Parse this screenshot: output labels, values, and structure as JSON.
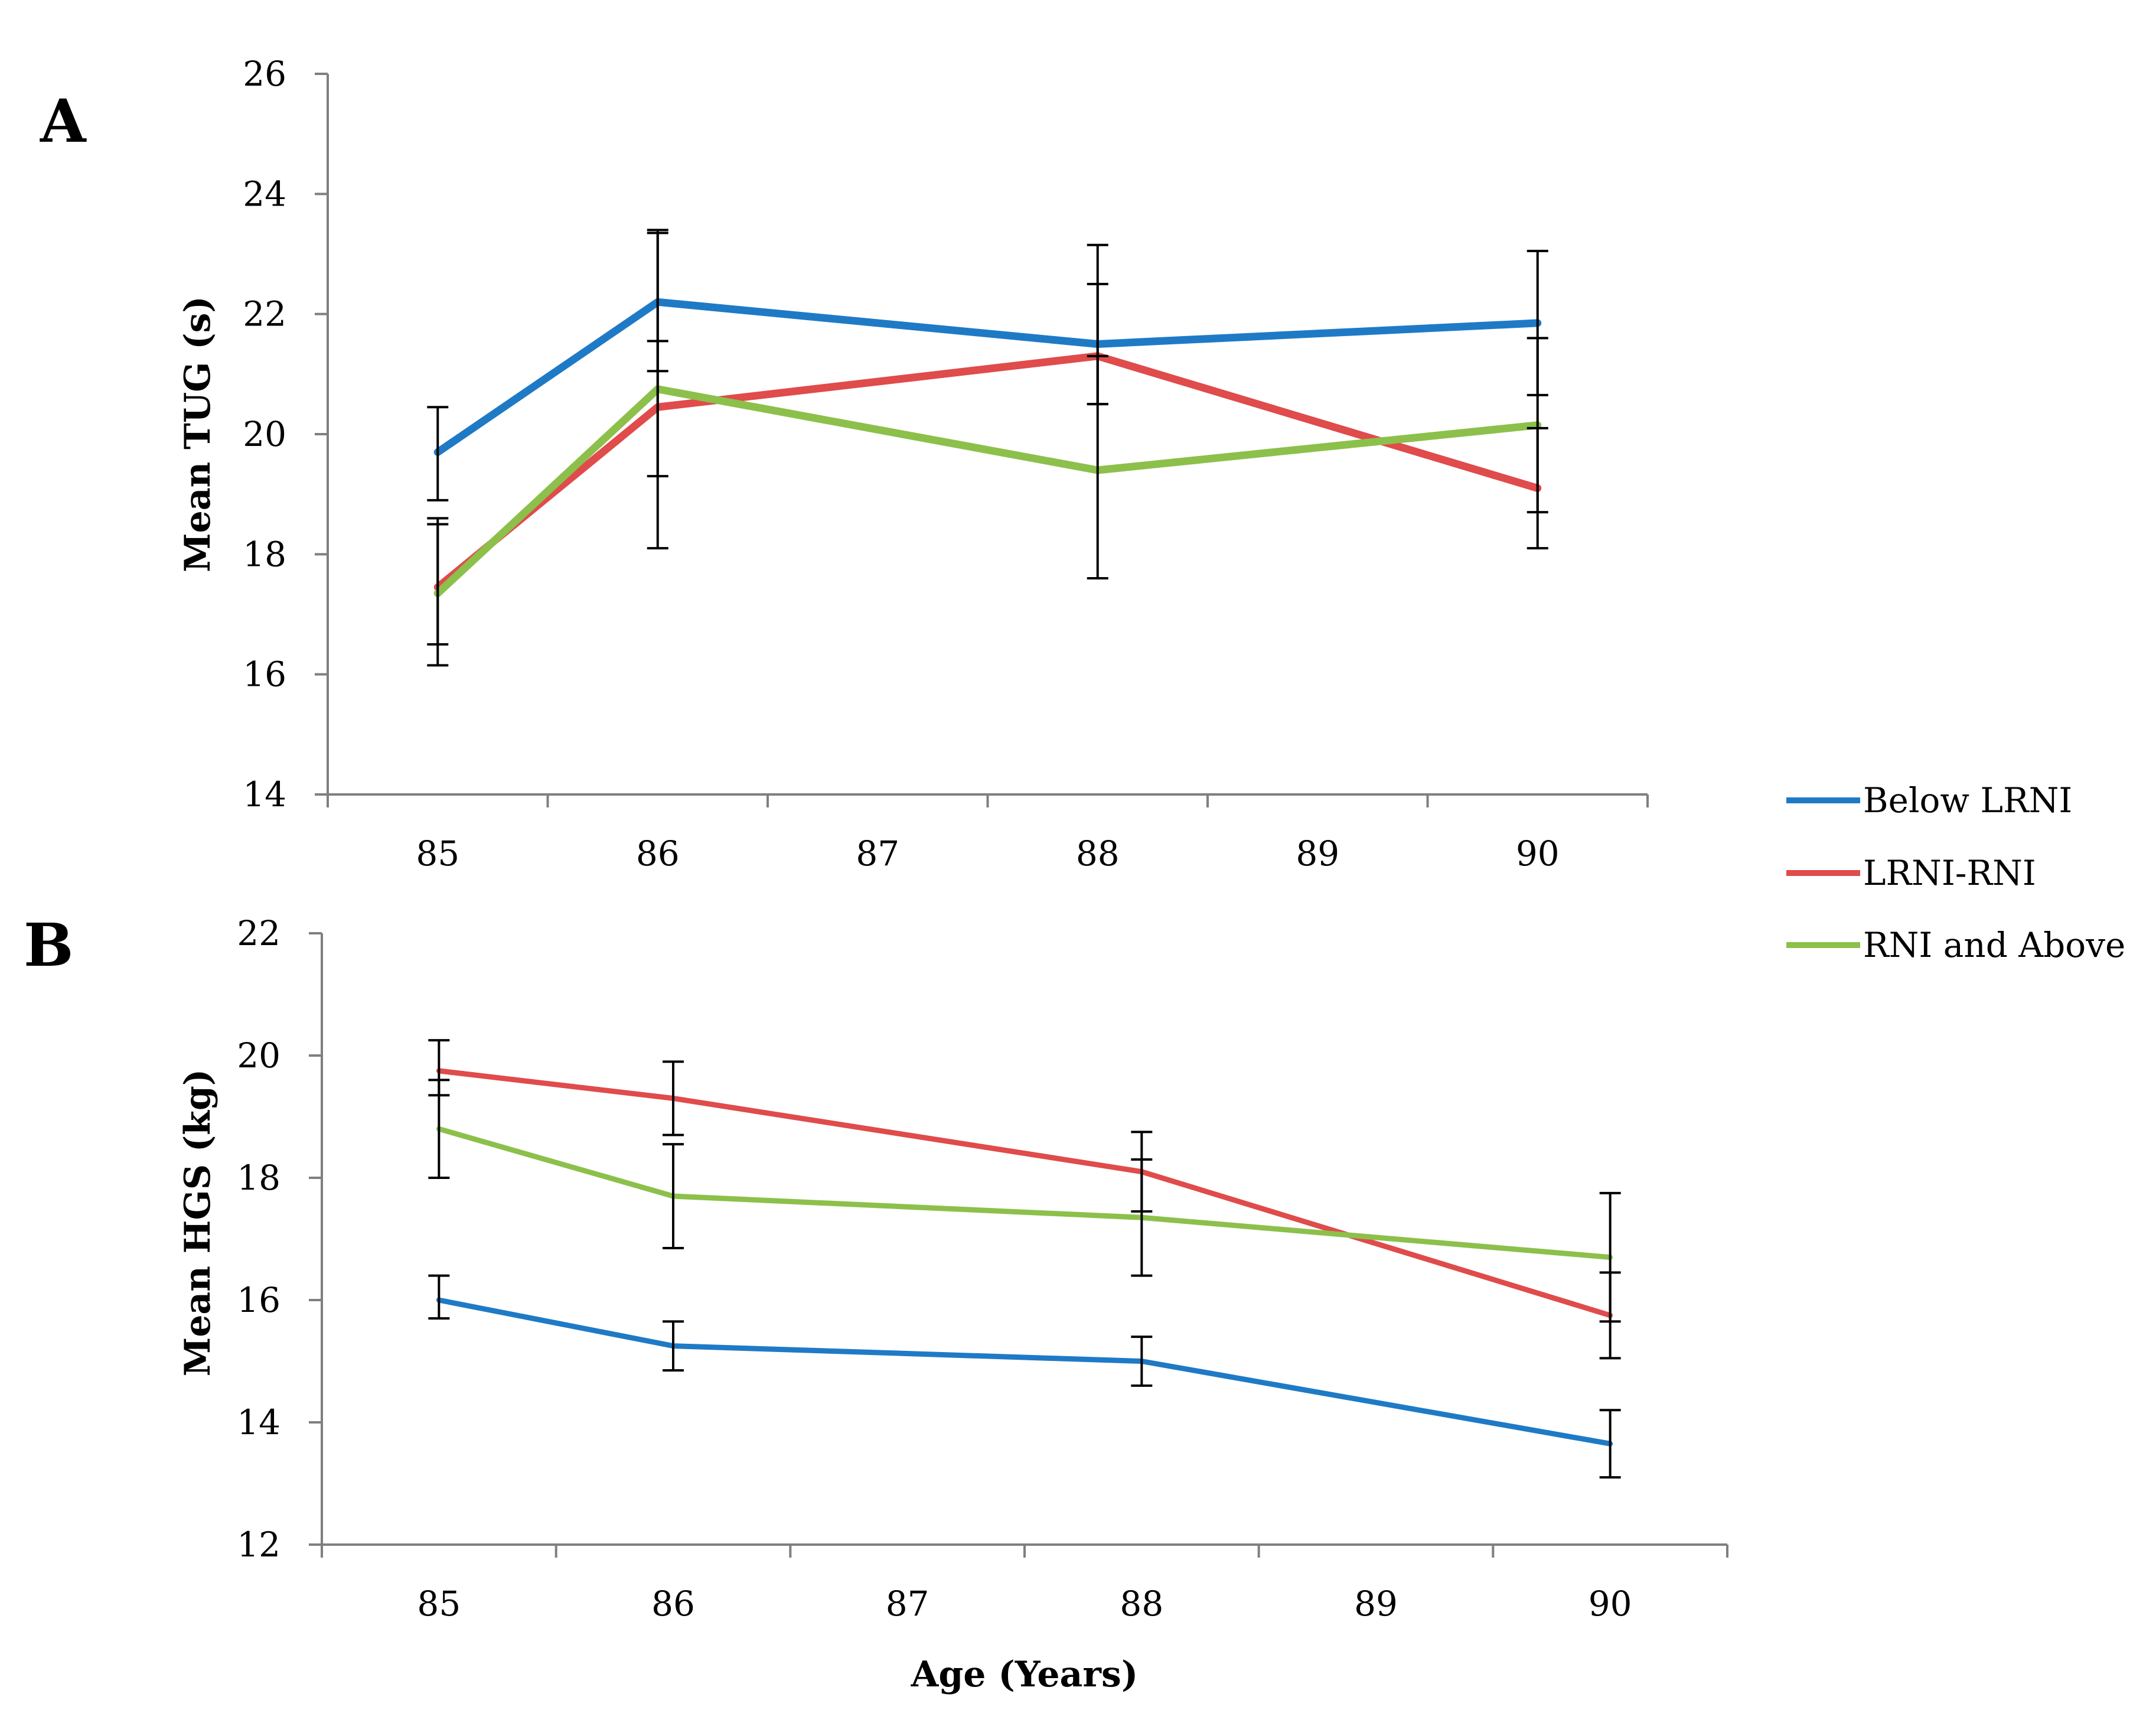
{
  "figure": {
    "legend": {
      "entries": [
        {
          "name": "Below LRNI",
          "color": "#1f7ac6"
        },
        {
          "name": "LRNI-RNI",
          "color": "#e04b4b"
        },
        {
          "name": "RNI and Above",
          "color": "#8cc04b"
        }
      ]
    },
    "shared_xlabel": "Age (Years)"
  },
  "chart_data": [
    {
      "panel": "A",
      "type": "line",
      "categories": [
        "85",
        "86",
        "87",
        "88",
        "89",
        "90"
      ],
      "ylabel": "Mean TUG (s)",
      "xlabel": "",
      "ylim": [
        14,
        26
      ],
      "yticks": [
        14,
        16,
        18,
        20,
        22,
        24,
        26
      ],
      "series": [
        {
          "name": "Below LRNI",
          "color": "#1f7ac6",
          "points": [
            {
              "x": 85,
              "y": 19.7,
              "lo": 18.9,
              "hi": 20.45
            },
            {
              "x": 86,
              "y": 22.2,
              "lo": 21.05,
              "hi": 23.35
            },
            {
              "x": 88,
              "y": 21.5,
              "lo": 20.5,
              "hi": 22.5
            },
            {
              "x": 90,
              "y": 21.85,
              "lo": 20.65,
              "hi": 23.05
            }
          ]
        },
        {
          "name": "LRNI-RNI",
          "color": "#e04b4b",
          "points": [
            {
              "x": 85,
              "y": 17.45,
              "lo": 16.5,
              "hi": 18.5
            },
            {
              "x": 86,
              "y": 20.45,
              "lo": 19.3,
              "hi": 21.55
            },
            {
              "x": 88,
              "y": 21.3,
              "lo": 20.5,
              "hi": 23.15
            },
            {
              "x": 90,
              "y": 19.1,
              "lo": 18.1,
              "hi": 20.1
            }
          ]
        },
        {
          "name": "RNI and Above",
          "color": "#8cc04b",
          "points": [
            {
              "x": 85,
              "y": 17.35,
              "lo": 16.15,
              "hi": 18.6
            },
            {
              "x": 86,
              "y": 20.75,
              "lo": 18.1,
              "hi": 23.4
            },
            {
              "x": 88,
              "y": 19.4,
              "lo": 17.6,
              "hi": 21.3
            },
            {
              "x": 90,
              "y": 20.15,
              "lo": 18.7,
              "hi": 21.6
            }
          ]
        }
      ]
    },
    {
      "panel": "B",
      "type": "line",
      "categories": [
        "85",
        "86",
        "87",
        "88",
        "89",
        "90"
      ],
      "ylabel": "Mean HGS (kg)",
      "xlabel": "Age (Years)",
      "ylim": [
        12,
        22
      ],
      "yticks": [
        12,
        14,
        16,
        18,
        20,
        22
      ],
      "series": [
        {
          "name": "Below LRNI",
          "color": "#1f7ac6",
          "points": [
            {
              "x": 85,
              "y": 16.0,
              "lo": 15.7,
              "hi": 16.4
            },
            {
              "x": 86,
              "y": 15.25,
              "lo": 14.85,
              "hi": 15.65
            },
            {
              "x": 88,
              "y": 15.0,
              "lo": 14.6,
              "hi": 15.4
            },
            {
              "x": 90,
              "y": 13.65,
              "lo": 13.1,
              "hi": 14.2
            }
          ]
        },
        {
          "name": "LRNI-RNI",
          "color": "#e04b4b",
          "points": [
            {
              "x": 85,
              "y": 19.75,
              "lo": 19.35,
              "hi": 20.25
            },
            {
              "x": 86,
              "y": 19.3,
              "lo": 18.7,
              "hi": 19.9
            },
            {
              "x": 88,
              "y": 18.1,
              "lo": 17.45,
              "hi": 18.75
            },
            {
              "x": 90,
              "y": 15.75,
              "lo": 15.05,
              "hi": 16.45
            }
          ]
        },
        {
          "name": "RNI and Above",
          "color": "#8cc04b",
          "points": [
            {
              "x": 85,
              "y": 18.8,
              "lo": 18.0,
              "hi": 19.6
            },
            {
              "x": 86,
              "y": 17.7,
              "lo": 16.85,
              "hi": 18.55
            },
            {
              "x": 88,
              "y": 17.35,
              "lo": 16.4,
              "hi": 18.3
            },
            {
              "x": 90,
              "y": 16.7,
              "lo": 15.65,
              "hi": 17.75
            }
          ]
        }
      ]
    }
  ]
}
